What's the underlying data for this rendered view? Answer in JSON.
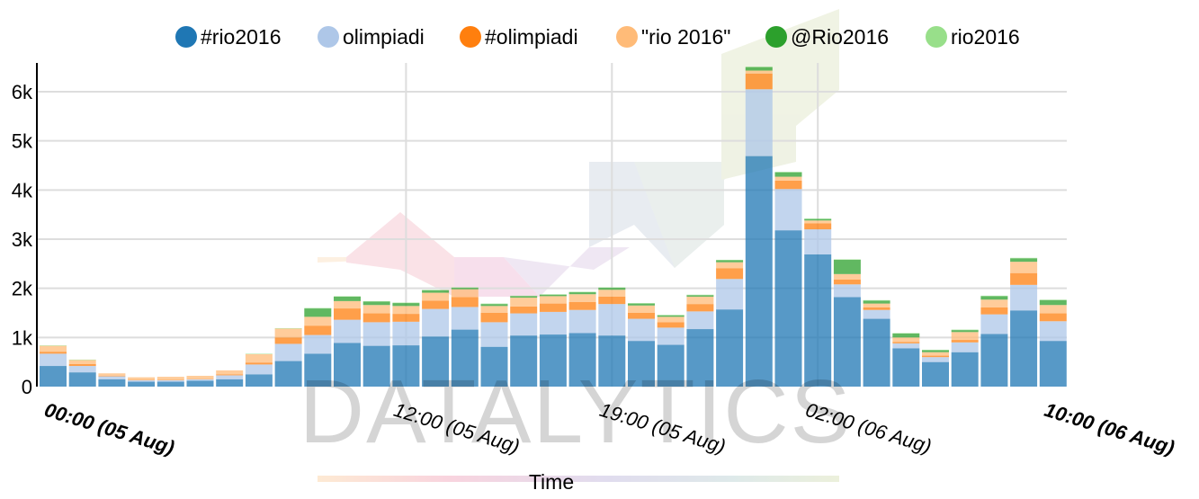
{
  "chart_data": {
    "type": "bar",
    "stacked": true,
    "xlabel": "Time",
    "ylabel": "",
    "ylim": [
      0,
      6600
    ],
    "yticks": [
      0,
      1000,
      2000,
      3000,
      4000,
      5000,
      6000
    ],
    "ytick_labels": [
      "0",
      "1k",
      "2k",
      "3k",
      "4k",
      "5k",
      "6k"
    ],
    "grid": true,
    "legend_position": "top",
    "x_tick_labels": [
      {
        "index": 0,
        "label": "00:00 (05 Aug)",
        "bold": true
      },
      {
        "index": 12,
        "label": "12:00 (05 Aug)",
        "bold": false
      },
      {
        "index": 19,
        "label": "19:00 (05 Aug)",
        "bold": false
      },
      {
        "index": 26,
        "label": "02:00 (06 Aug)",
        "bold": false
      },
      {
        "index": 34,
        "label": "10:00 (06 Aug)",
        "bold": true
      }
    ],
    "watermark": "DATALYTICS",
    "series": [
      {
        "name": "#rio2016",
        "color": "#1f77b4",
        "values": [
          420,
          290,
          150,
          100,
          100,
          120,
          150,
          250,
          520,
          670,
          890,
          830,
          840,
          1020,
          1160,
          810,
          1040,
          1060,
          1090,
          1040,
          930,
          850,
          1170,
          1570,
          4690,
          3180,
          2690,
          1820,
          1380,
          780,
          500,
          700,
          1070,
          1550,
          930
        ]
      },
      {
        "name": "olimpiadi",
        "color": "#aec7e8",
        "values": [
          250,
          130,
          60,
          30,
          30,
          30,
          80,
          200,
          350,
          380,
          470,
          480,
          480,
          560,
          460,
          500,
          450,
          460,
          470,
          640,
          450,
          350,
          360,
          620,
          1360,
          840,
          510,
          260,
          180,
          100,
          100,
          200,
          400,
          520,
          400
        ]
      },
      {
        "name": "#olimpiadi",
        "color": "#ff7f0e",
        "values": [
          40,
          40,
          10,
          10,
          10,
          10,
          20,
          40,
          130,
          190,
          230,
          180,
          160,
          170,
          200,
          190,
          140,
          170,
          160,
          150,
          120,
          110,
          150,
          220,
          320,
          170,
          120,
          100,
          50,
          30,
          30,
          50,
          140,
          240,
          160
        ]
      },
      {
        "name": "\"rio 2016\"",
        "color": "#ffbb78",
        "values": [
          120,
          80,
          50,
          50,
          60,
          60,
          80,
          170,
          180,
          180,
          150,
          170,
          160,
          160,
          160,
          140,
          180,
          150,
          160,
          140,
          150,
          110,
          150,
          120,
          60,
          80,
          60,
          110,
          80,
          90,
          70,
          160,
          160,
          230,
          170
        ]
      },
      {
        "name": "@Rio2016",
        "color": "#2ca02c",
        "values": [
          0,
          0,
          0,
          0,
          0,
          0,
          0,
          0,
          0,
          170,
          90,
          70,
          60,
          50,
          30,
          40,
          30,
          30,
          40,
          40,
          40,
          30,
          30,
          40,
          70,
          90,
          30,
          290,
          60,
          80,
          40,
          40,
          70,
          70,
          100
        ]
      },
      {
        "name": "rio2016",
        "color": "#98df8a",
        "values": [
          10,
          10,
          0,
          0,
          0,
          0,
          0,
          10,
          10,
          10,
          10,
          10,
          10,
          10,
          10,
          10,
          10,
          10,
          10,
          10,
          10,
          10,
          10,
          10,
          10,
          10,
          10,
          10,
          10,
          10,
          10,
          10,
          10,
          10,
          10
        ]
      }
    ]
  }
}
